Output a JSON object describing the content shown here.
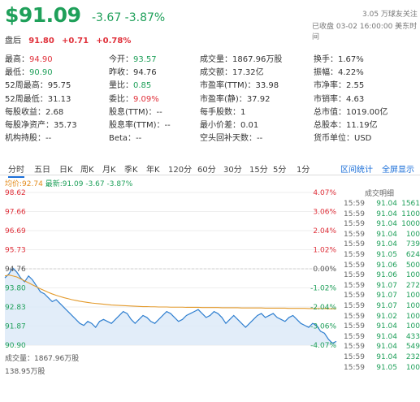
{
  "header": {
    "price": "$91.09",
    "change": "-3.67 -3.87%",
    "follow": "3.05 万球友关注",
    "status": "已收盘 03-02 16:00:00 美东时间",
    "after_label": "盘后",
    "after_price": "91.80",
    "after_change": "+0.71",
    "after_pct": "+0.78%"
  },
  "quote": {
    "rows": [
      [
        {
          "l": "最高：",
          "v": "94.90",
          "c": "red"
        },
        {
          "l": "今开：",
          "v": "93.57",
          "c": "green"
        },
        {
          "l": "成交量：",
          "v": "1867.96万股",
          "c": ""
        },
        {
          "l": "换手：",
          "v": "1.67%",
          "c": ""
        }
      ],
      [
        {
          "l": "最低：",
          "v": "90.90",
          "c": "green"
        },
        {
          "l": "昨收：",
          "v": "94.76",
          "c": ""
        },
        {
          "l": "成交额：",
          "v": "17.32亿",
          "c": ""
        },
        {
          "l": "振幅：",
          "v": "4.22%",
          "c": ""
        }
      ],
      [
        {
          "l": "52周最高：",
          "v": "95.75",
          "c": ""
        },
        {
          "l": "量比：",
          "v": "0.85",
          "c": "green"
        },
        {
          "l": "市盈率(TTM)：",
          "v": "33.98",
          "c": ""
        },
        {
          "l": "市净率：",
          "v": "2.55",
          "c": ""
        }
      ],
      [
        {
          "l": "52周最低：",
          "v": "31.13",
          "c": ""
        },
        {
          "l": "委比：",
          "v": "9.09%",
          "c": "red"
        },
        {
          "l": "市盈率(静)：",
          "v": "37.92",
          "c": ""
        },
        {
          "l": "市销率：",
          "v": "4.63",
          "c": ""
        }
      ],
      [
        {
          "l": "每股收益：",
          "v": "2.68",
          "c": ""
        },
        {
          "l": "股息(TTM)：",
          "v": "--",
          "c": ""
        },
        {
          "l": "每手股数：",
          "v": "1",
          "c": ""
        },
        {
          "l": "总市值：",
          "v": "1019.00亿",
          "c": ""
        }
      ],
      [
        {
          "l": "每股净资产：",
          "v": "35.73",
          "c": ""
        },
        {
          "l": "股息率(TTM)：",
          "v": "--",
          "c": ""
        },
        {
          "l": "最小价差：",
          "v": "0.01",
          "c": ""
        },
        {
          "l": "总股本：",
          "v": "11.19亿",
          "c": ""
        }
      ],
      [
        {
          "l": "机构持股：",
          "v": "--",
          "c": ""
        },
        {
          "l": "Beta：",
          "v": "--",
          "c": ""
        },
        {
          "l": "空头回补天数：",
          "v": "--",
          "c": ""
        },
        {
          "l": "货币单位：",
          "v": "USD",
          "c": ""
        }
      ]
    ]
  },
  "tabs": [
    "分时",
    "五日",
    "日K",
    "周K",
    "月K",
    "季K",
    "年K",
    "120分",
    "60分",
    "30分",
    "15分",
    "5分",
    "1分"
  ],
  "tab_links": {
    "stats": "区间统计",
    "fullscreen": "全屏显示"
  },
  "legend": {
    "avg_label": "均价:92.74",
    "latest_label": "最新:91.09 -3.67 -3.87%"
  },
  "chart_data": {
    "type": "line",
    "y_labels_left": [
      "98.62",
      "97.66",
      "96.69",
      "95.73",
      "94.76",
      "93.80",
      "92.83",
      "91.87",
      "90.90"
    ],
    "y_labels_right": [
      "4.07%",
      "3.06%",
      "2.04%",
      "1.02%",
      "0.00%",
      "-1.02%",
      "-2.04%",
      "-3.06%",
      "-4.07%"
    ],
    "ylim": [
      90.9,
      98.62
    ],
    "prev_close": 94.76,
    "series": [
      {
        "name": "最新",
        "values": [
          94.3,
          94.5,
          94.8,
          94.6,
          94.3,
          94.1,
          94.4,
          94.2,
          93.9,
          93.6,
          93.5,
          93.3,
          93.1,
          93.2,
          93.0,
          92.8,
          92.6,
          92.4,
          92.2,
          92.0,
          91.9,
          92.1,
          92.0,
          91.8,
          92.1,
          92.2,
          92.1,
          92.0,
          92.2,
          92.4,
          92.6,
          92.5,
          92.2,
          92.0,
          92.2,
          92.4,
          92.3,
          92.1,
          92.0,
          92.2,
          92.4,
          92.6,
          92.5,
          92.3,
          92.1,
          92.2,
          92.4,
          92.5,
          92.6,
          92.7,
          92.5,
          92.3,
          92.4,
          92.6,
          92.5,
          92.3,
          92.0,
          92.2,
          92.4,
          92.2,
          92.0,
          91.8,
          92.0,
          92.2,
          92.4,
          92.5,
          92.3,
          92.4,
          92.5,
          92.3,
          92.2,
          92.1,
          92.3,
          92.4,
          92.2,
          92.0,
          91.9,
          91.8,
          92.0,
          91.9,
          91.6,
          91.5,
          91.2,
          91.0,
          91.09
        ]
      },
      {
        "name": "均价",
        "values": [
          94.4,
          94.45,
          94.4,
          94.35,
          94.25,
          94.15,
          94.05,
          93.95,
          93.85,
          93.75,
          93.66,
          93.57,
          93.49,
          93.42,
          93.36,
          93.3,
          93.25,
          93.2,
          93.16,
          93.12,
          93.09,
          93.06,
          93.03,
          93.01,
          92.99,
          92.97,
          92.95,
          92.93,
          92.92,
          92.91,
          92.9,
          92.89,
          92.88,
          92.87,
          92.86,
          92.85,
          92.85,
          92.84,
          92.84,
          92.83,
          92.83,
          92.83,
          92.82,
          92.82,
          92.82,
          92.82,
          92.81,
          92.81,
          92.81,
          92.81,
          92.8,
          92.8,
          92.8,
          92.8,
          92.8,
          92.79,
          92.79,
          92.79,
          92.79,
          92.79,
          92.78,
          92.78,
          92.78,
          92.78,
          92.78,
          92.78,
          92.77,
          92.77,
          92.77,
          92.77,
          92.77,
          92.77,
          92.76,
          92.76,
          92.76,
          92.76,
          92.76,
          92.75,
          92.75,
          92.75,
          92.75,
          92.75,
          92.74,
          92.74,
          92.74
        ]
      }
    ]
  },
  "trades": {
    "title": "成交明细",
    "rows": [
      {
        "t": "15:59",
        "p": "91.04",
        "v": "1561"
      },
      {
        "t": "15:59",
        "p": "91.04",
        "v": "1100"
      },
      {
        "t": "15:59",
        "p": "91.04",
        "v": "1000"
      },
      {
        "t": "15:59",
        "p": "91.04",
        "v": "100"
      },
      {
        "t": "15:59",
        "p": "91.04",
        "v": "739"
      },
      {
        "t": "15:59",
        "p": "91.05",
        "v": "624"
      },
      {
        "t": "15:59",
        "p": "91.06",
        "v": "500"
      },
      {
        "t": "15:59",
        "p": "91.06",
        "v": "100"
      },
      {
        "t": "15:59",
        "p": "91.07",
        "v": "272"
      },
      {
        "t": "15:59",
        "p": "91.07",
        "v": "100"
      },
      {
        "t": "15:59",
        "p": "91.07",
        "v": "100"
      },
      {
        "t": "15:59",
        "p": "91.02",
        "v": "100"
      },
      {
        "t": "15:59",
        "p": "91.04",
        "v": "100"
      },
      {
        "t": "15:59",
        "p": "91.04",
        "v": "433"
      },
      {
        "t": "15:59",
        "p": "91.04",
        "v": "549"
      },
      {
        "t": "15:59",
        "p": "91.04",
        "v": "232"
      },
      {
        "t": "15:59",
        "p": "91.05",
        "v": "100"
      }
    ]
  },
  "volume": {
    "label": "成交量：1867.96万股",
    "max": "138.95万股"
  }
}
